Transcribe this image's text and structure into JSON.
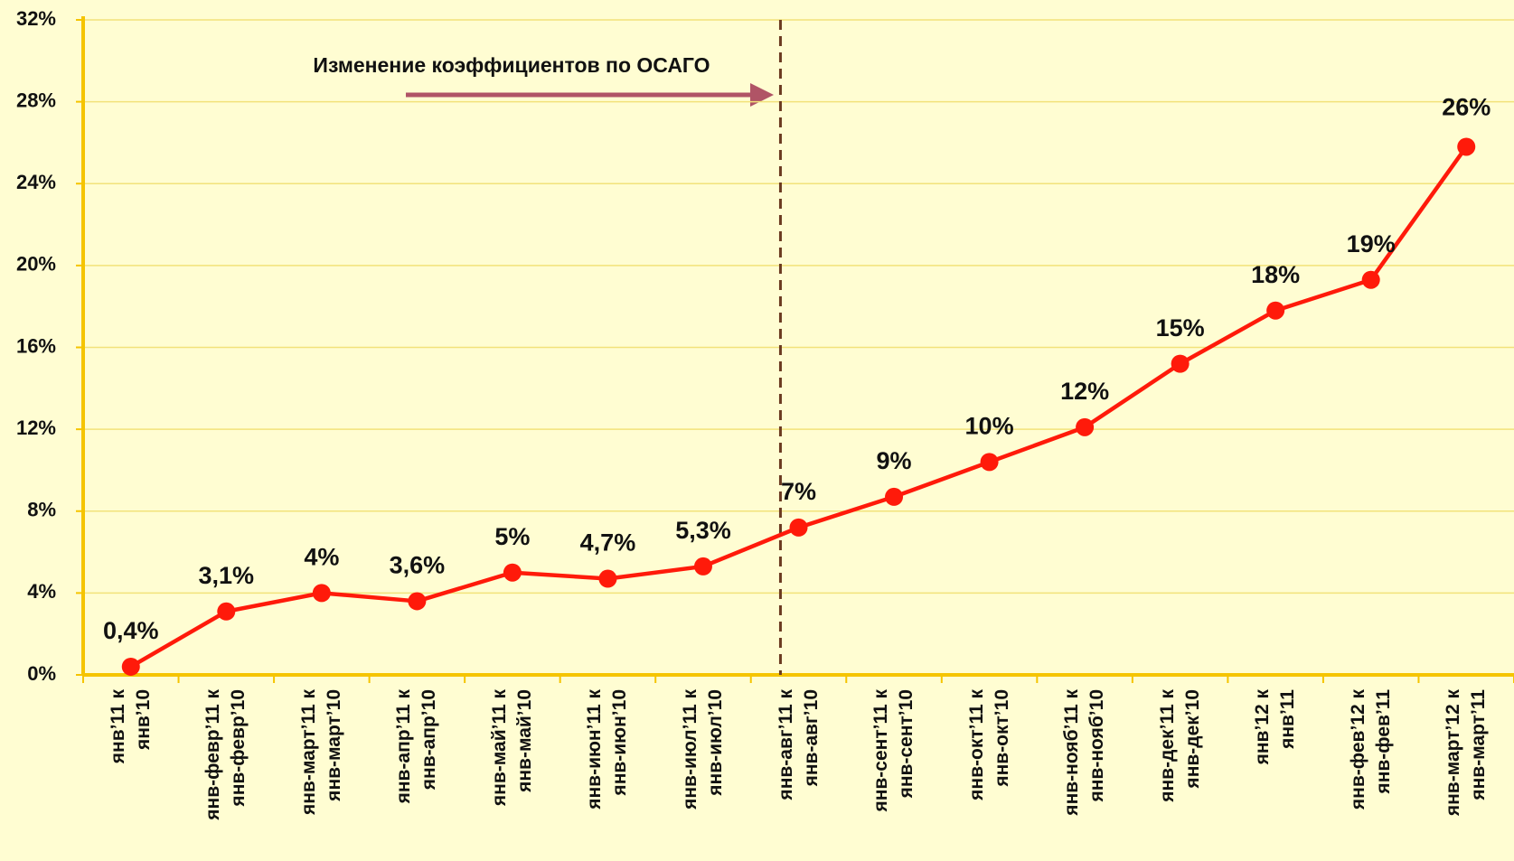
{
  "chart_data": {
    "type": "line",
    "annotation": "Изменение коэффициентов по ОСАГО",
    "categories": [
      "янв’11 к\nянв’10",
      "янв-февр’11 к\nянв-февр’10",
      "янв-март’11 к\nянв-март’10",
      "янв-апр’11 к\nянв-апр’10",
      "янв-май’11 к\nянв-май’10",
      "янв-июн’11 к\nянв-июн’10",
      "янв-июл’11 к\nянв-июл’10",
      "янв-авг’11 к\nянв-авг’10",
      "янв-сент’11 к\nянв-сент’10",
      "янв-окт’11 к\nянв-окт’10",
      "янв-нояб’11 к\nянв-нояб’10",
      "янв-дек’11 к\nянв-дек’10",
      "янв’12 к\nянв’11",
      "янв-фев’12 к\nянв-фев’11",
      "янв-март’12 к\nянв-март’11"
    ],
    "values": [
      0.4,
      3.1,
      4,
      3.6,
      5,
      4.7,
      5.3,
      7.2,
      8.7,
      10.4,
      12.1,
      15.2,
      17.8,
      19.3,
      25.8
    ],
    "value_labels": [
      "0,4%",
      "3,1%",
      "4%",
      "3,6%",
      "5%",
      "4,7%",
      "5,3%",
      "7%",
      "9%",
      "10%",
      "12%",
      "15%",
      "18%",
      "19%",
      "26%"
    ],
    "color": "#ff1a0a",
    "ylim": [
      0,
      32
    ],
    "yticks": [
      {
        "value": 0,
        "label": "0%"
      },
      {
        "value": 4,
        "label": "4%"
      },
      {
        "value": 8,
        "label": "8%"
      },
      {
        "value": 12,
        "label": "12%"
      },
      {
        "value": 16,
        "label": "16%"
      },
      {
        "value": 20,
        "label": "20%"
      },
      {
        "value": 24,
        "label": "24%"
      },
      {
        "value": 28,
        "label": "28%"
      },
      {
        "value": 32,
        "label": "32%"
      }
    ],
    "grid": true
  }
}
